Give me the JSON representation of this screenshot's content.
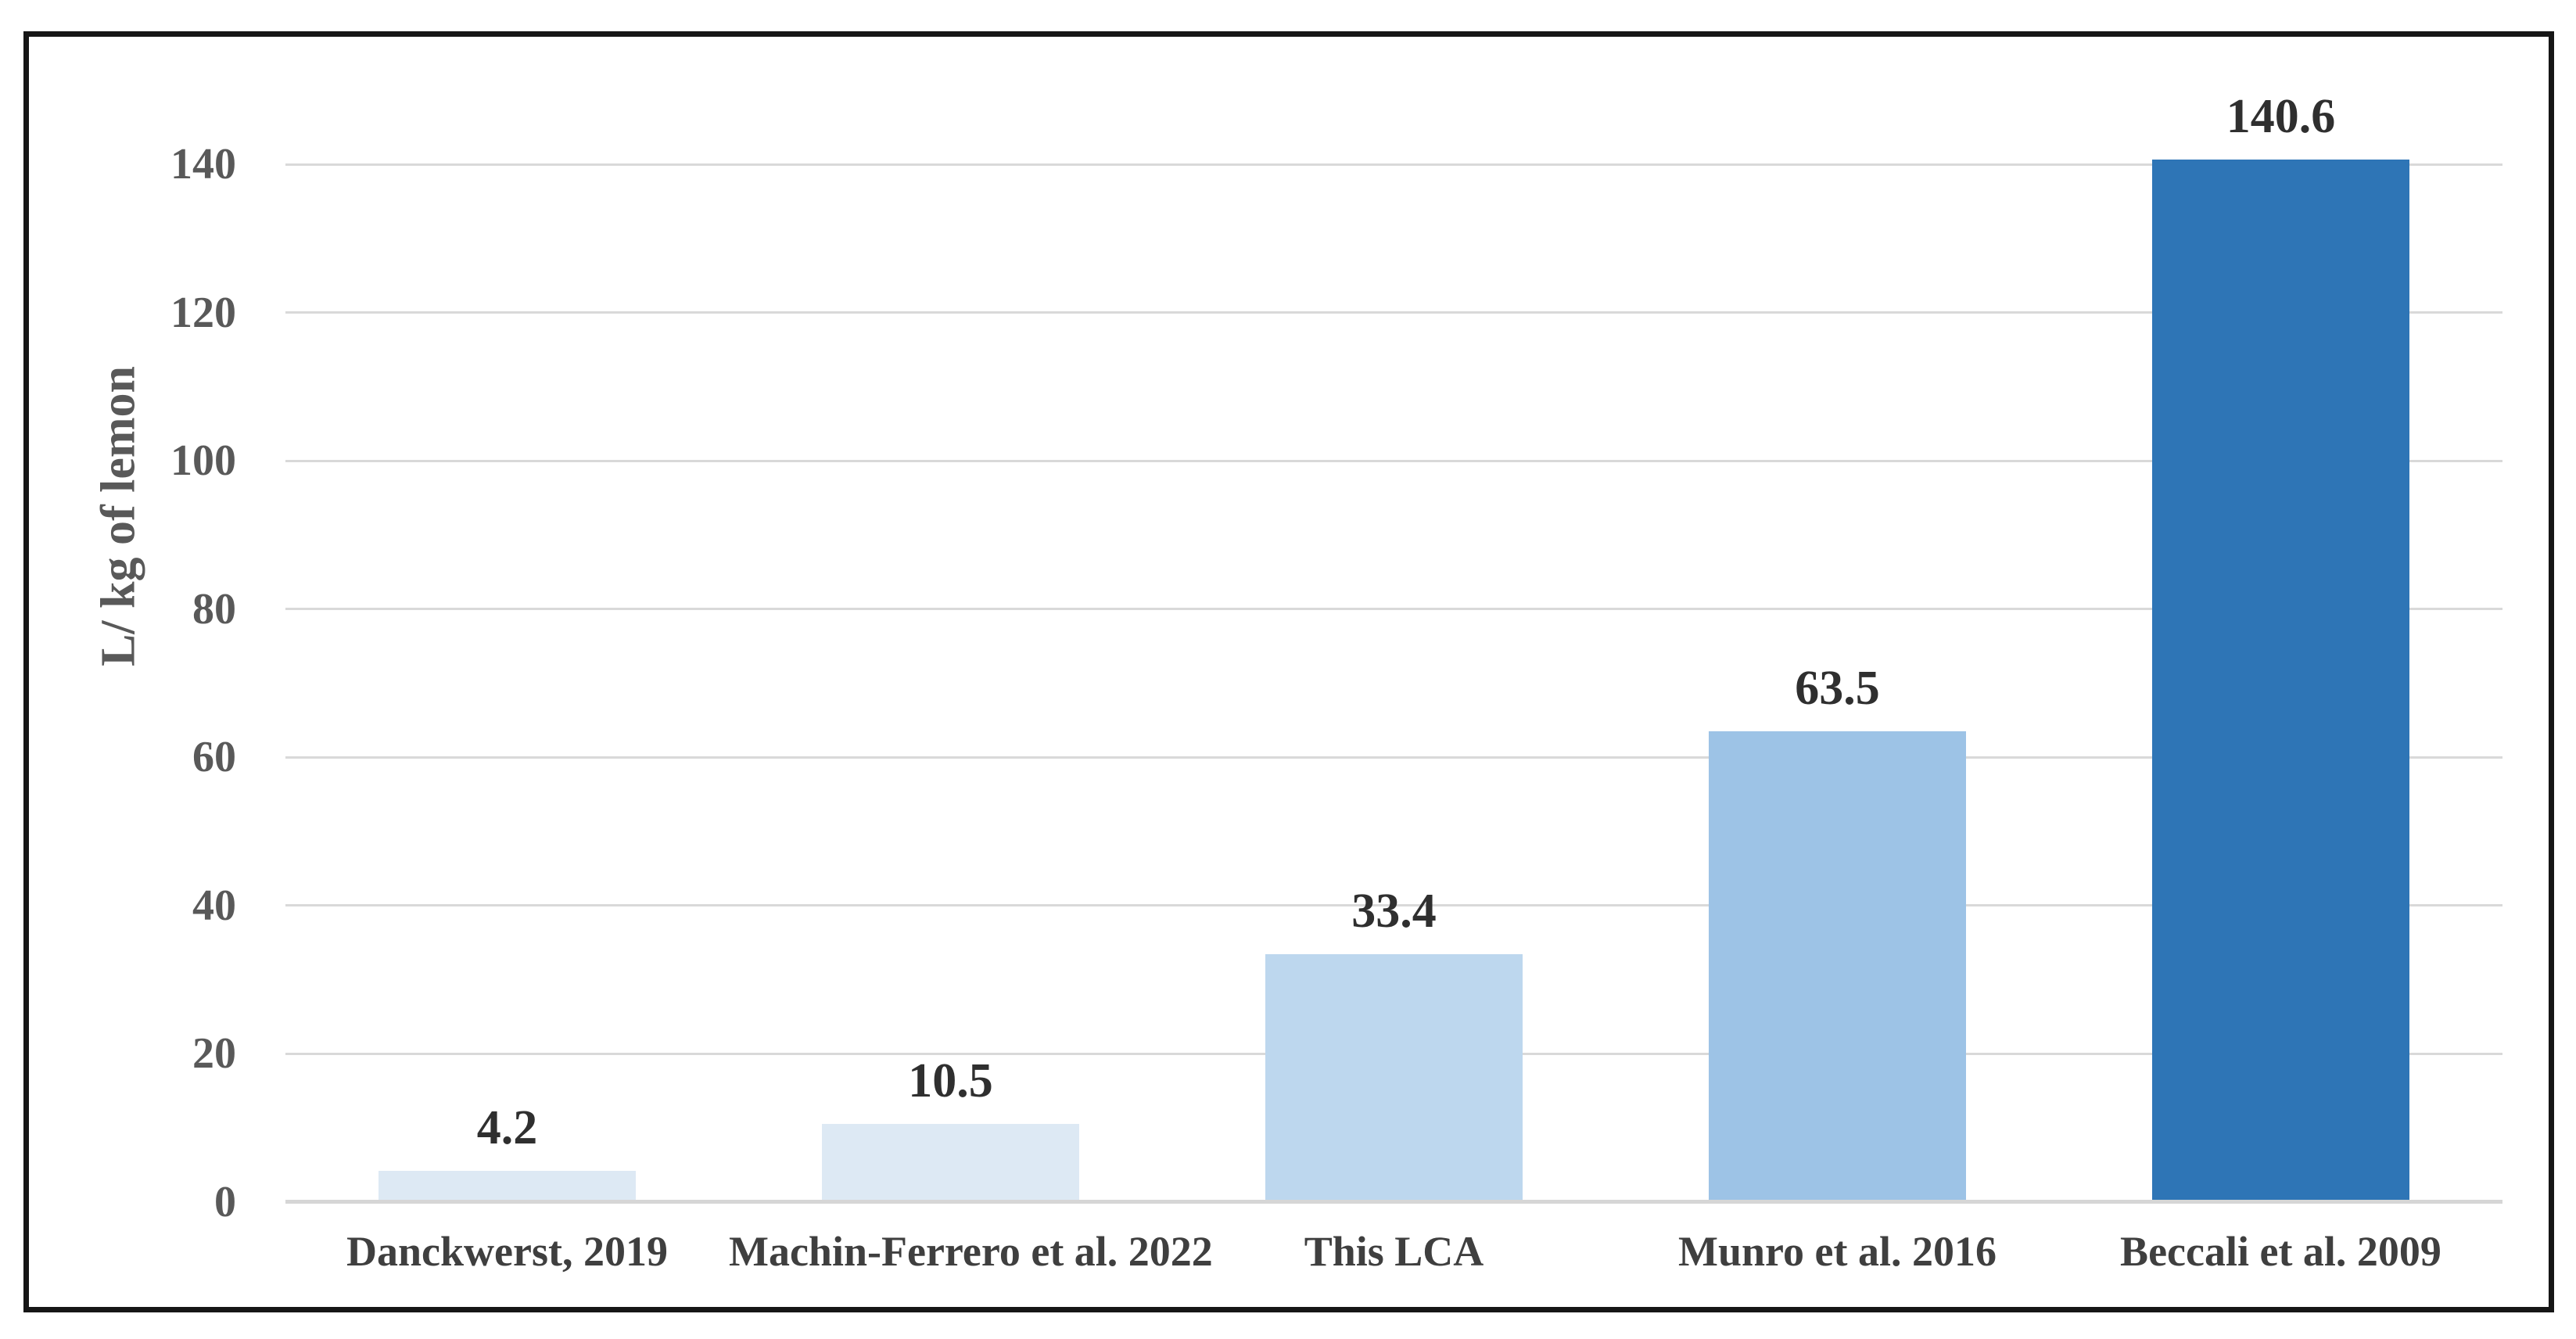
{
  "figure": {
    "background": "#ffffff",
    "border_color": "#161616"
  },
  "chart_data": {
    "type": "bar",
    "title": "",
    "ylabel": "L/ kg of lemon",
    "xlabel": "",
    "categories": [
      "Danckwerst, 2019",
      "Machin-Ferrero et al. 2022",
      "This LCA",
      "Munro et al. 2016",
      "Beccali et al. 2009"
    ],
    "values": [
      4.2,
      10.5,
      33.4,
      63.5,
      140.6
    ],
    "value_labels": [
      "4.2",
      "10.5",
      "33.4",
      "63.5",
      "140.6"
    ],
    "bar_colors": [
      "#dde9f4",
      "#dde9f4",
      "#bdd7ee",
      "#9dc3e6",
      "#2e75b6"
    ],
    "ylim": [
      0,
      140
    ],
    "yticks": [
      0,
      20,
      40,
      60,
      80,
      100,
      120,
      140
    ],
    "grid": "horizontal",
    "legend_position": "none",
    "styles": {
      "gridline_color": "#d9d9d9",
      "axis_line_color": "#d6d6d6",
      "tick_label_color": "#595959",
      "ylabel_color": "#595959",
      "value_label_color": "#2f2f2f",
      "category_label_color": "#3f3f3f"
    }
  }
}
